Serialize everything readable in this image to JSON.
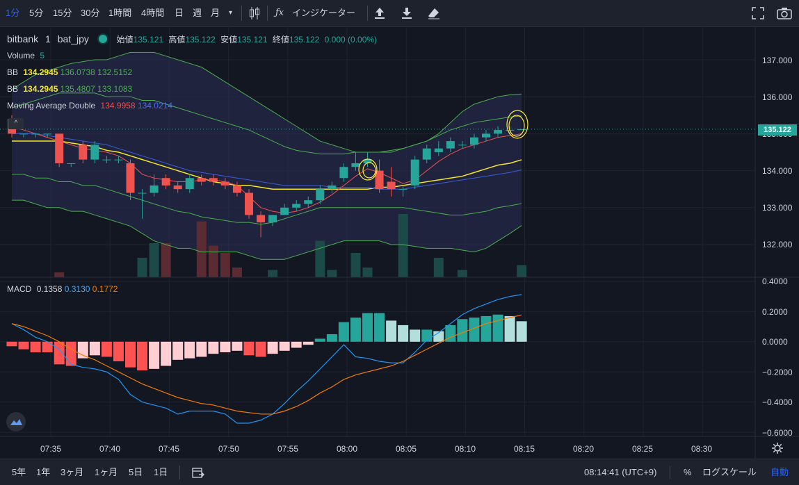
{
  "toolbar": {
    "intervals": [
      "1分",
      "5分",
      "15分",
      "30分",
      "1時間",
      "4時間",
      "日",
      "週",
      "月"
    ],
    "indicators_label": "インジケーター"
  },
  "legend": {
    "symbol": "bitbank",
    "interval": "1",
    "pair": "bat_jpy",
    "open_label": "始値",
    "open": "135.121",
    "high_label": "高値",
    "high": "135.122",
    "low_label": "安値",
    "low": "135.121",
    "close_label": "終値",
    "close": "135.122",
    "change": "0.000 (0.00%)",
    "volume_label": "Volume",
    "volume_value": "5",
    "bb1_label": "BB",
    "bb1_mid": "134.2945",
    "bb1_upper": "136.0738",
    "bb1_lower": "132.5152",
    "bb2_label": "BB",
    "bb2_mid": "134.2945",
    "bb2_upper": "135.4807",
    "bb2_lower": "133.1083",
    "ma_label": "Moving Average Double",
    "ma_fast": "134.9958",
    "ma_slow": "134.0214"
  },
  "macd_legend": {
    "label": "MACD",
    "hist": "0.1358",
    "macd": "0.3130",
    "signal": "0.1772"
  },
  "price_axis": [
    "137.000",
    "136.000",
    "135.000",
    "134.000",
    "133.000",
    "132.000"
  ],
  "current_price": "135.122",
  "macd_axis": [
    "0.4000",
    "0.2000",
    "0.0000",
    "−0.2000",
    "−0.4000",
    "−0.6000"
  ],
  "time_axis": [
    "07:35",
    "07:40",
    "07:45",
    "07:50",
    "07:55",
    "08:00",
    "08:05",
    "08:10",
    "08:15",
    "08:20",
    "08:25",
    "08:30"
  ],
  "bottom": {
    "ranges": [
      "5年",
      "1年",
      "3ヶ月",
      "1ヶ月",
      "5日",
      "1日"
    ],
    "time": "08:14:41 (UTC+9)",
    "percent": "%",
    "log": "ログスケール",
    "auto": "自動"
  },
  "colors": {
    "up": "#26a69a",
    "down": "#ef5350",
    "background": "#131722",
    "accent": "#2962ff"
  },
  "chart_data": [
    {
      "type": "candlestick",
      "title": "bitbank bat_jpy 1",
      "x": [
        "07:31",
        "07:32",
        "07:33",
        "07:34",
        "07:35",
        "07:36",
        "07:37",
        "07:38",
        "07:39",
        "07:40",
        "07:41",
        "07:42",
        "07:43",
        "07:44",
        "07:45",
        "07:46",
        "07:47",
        "07:48",
        "07:49",
        "07:50",
        "07:51",
        "07:52",
        "07:53",
        "07:54",
        "07:55",
        "07:56",
        "07:57",
        "07:58",
        "07:59",
        "08:00",
        "08:01",
        "08:02",
        "08:03",
        "08:04",
        "08:05",
        "08:06",
        "08:07",
        "08:08",
        "08:09",
        "08:10",
        "08:11",
        "08:12",
        "08:13",
        "08:14"
      ],
      "open": [
        135.4,
        135.0,
        135.0,
        135.0,
        135.0,
        134.2,
        134.7,
        134.3,
        134.3,
        134.3,
        134.2,
        133.4,
        133.4,
        133.8,
        133.6,
        133.5,
        133.8,
        133.8,
        133.7,
        133.6,
        133.4,
        132.8,
        132.6,
        132.8,
        133.0,
        133.1,
        133.2,
        133.5,
        133.8,
        134.1,
        134.2,
        134.0,
        133.7,
        133.5,
        133.6,
        134.3,
        134.5,
        134.6,
        134.7,
        134.7,
        134.9,
        135.0,
        135.1,
        135.1
      ],
      "close": [
        135.0,
        135.0,
        135.0,
        135.0,
        134.2,
        134.2,
        134.3,
        134.7,
        134.3,
        134.3,
        133.4,
        133.4,
        133.6,
        133.6,
        133.5,
        133.8,
        133.7,
        133.7,
        133.6,
        133.4,
        132.8,
        132.6,
        132.8,
        133.0,
        133.1,
        133.2,
        133.5,
        133.6,
        134.1,
        134.2,
        134.3,
        133.5,
        133.5,
        133.5,
        134.3,
        134.6,
        134.6,
        134.8,
        134.7,
        134.9,
        135.0,
        135.1,
        135.1,
        135.122
      ],
      "high": [
        135.5,
        135.0,
        135.0,
        135.0,
        135.0,
        134.2,
        134.8,
        134.8,
        134.4,
        134.4,
        134.3,
        133.5,
        133.9,
        133.9,
        133.7,
        133.9,
        133.9,
        133.9,
        133.8,
        133.7,
        133.5,
        132.9,
        132.8,
        133.1,
        133.2,
        133.3,
        133.6,
        133.7,
        134.2,
        134.5,
        134.5,
        134.3,
        134.1,
        133.6,
        134.4,
        134.7,
        134.8,
        134.9,
        134.8,
        135.0,
        135.1,
        135.2,
        135.2,
        135.122
      ],
      "low": [
        134.9,
        134.9,
        134.9,
        134.9,
        134.1,
        134.1,
        134.2,
        134.2,
        134.2,
        134.2,
        133.2,
        132.7,
        133.3,
        133.5,
        133.4,
        133.4,
        133.6,
        133.6,
        133.5,
        133.3,
        132.7,
        132.2,
        132.5,
        132.8,
        132.9,
        133.0,
        133.1,
        133.4,
        133.7,
        134.0,
        134.1,
        133.4,
        133.3,
        133.3,
        133.5,
        134.2,
        134.4,
        134.5,
        134.6,
        134.6,
        134.8,
        134.9,
        135.0,
        135.121
      ],
      "volume": [
        0,
        0,
        0,
        0,
        2,
        0,
        0,
        0,
        0,
        0,
        0,
        8,
        14,
        14,
        0,
        0,
        23,
        13,
        10,
        4,
        0,
        0,
        3,
        0,
        0,
        0,
        15,
        3,
        0,
        10,
        4,
        0,
        0,
        26,
        0,
        0,
        8,
        0,
        3,
        0,
        0,
        0,
        0,
        5
      ],
      "series": [
        {
          "name": "BB upper (2σ)",
          "values": [
            136.2,
            136.4,
            136.6,
            136.7,
            136.8,
            136.9,
            136.95,
            137.0,
            137.0,
            137.1,
            137.2,
            137.2,
            137.2,
            137.1,
            137.0,
            136.9,
            136.8,
            136.6,
            136.4,
            136.2,
            136.0,
            135.8,
            135.6,
            135.4,
            135.2,
            135.0,
            134.8,
            134.7,
            134.6,
            134.5,
            134.5,
            134.5,
            134.5,
            134.6,
            134.7,
            134.8,
            135.0,
            135.3,
            135.6,
            135.8,
            135.9,
            136.0,
            136.05,
            136.0738
          ]
        },
        {
          "name": "BB lower (2σ)",
          "values": [
            133.2,
            133.2,
            133.1,
            133.0,
            133.0,
            132.9,
            132.9,
            132.8,
            132.7,
            132.6,
            132.5,
            132.3,
            132.1,
            132.0,
            131.9,
            131.9,
            131.8,
            131.8,
            131.8,
            131.8,
            131.7,
            131.6,
            131.6,
            131.6,
            131.7,
            131.8,
            131.9,
            132.0,
            132.1,
            132.1,
            132.1,
            132.1,
            132.0,
            132.0,
            131.95,
            131.9,
            131.9,
            131.9,
            131.85,
            131.8,
            131.9,
            132.1,
            132.3,
            132.5152
          ]
        },
        {
          "name": "BB upper (1σ)",
          "values": [
            135.7,
            135.8,
            135.9,
            136.0,
            136.1,
            136.1,
            136.1,
            136.1,
            136.0,
            136.0,
            136.0,
            135.9,
            135.9,
            135.8,
            135.7,
            135.6,
            135.5,
            135.4,
            135.3,
            135.2,
            135.1,
            134.95,
            134.8,
            134.65,
            134.55,
            134.5,
            134.45,
            134.45,
            134.45,
            134.5,
            134.5,
            134.5,
            134.55,
            134.6,
            134.7,
            134.8,
            134.95,
            135.1,
            135.2,
            135.3,
            135.35,
            135.4,
            135.45,
            135.4807
          ]
        },
        {
          "name": "BB lower (1σ)",
          "values": [
            133.9,
            133.9,
            133.8,
            133.8,
            133.7,
            133.7,
            133.6,
            133.6,
            133.5,
            133.4,
            133.3,
            133.2,
            133.1,
            133.0,
            132.9,
            132.85,
            132.75,
            132.7,
            132.65,
            132.6,
            132.6,
            132.55,
            132.6,
            132.7,
            132.8,
            132.9,
            133.0,
            133.0,
            133.0,
            133.0,
            133.0,
            133.0,
            133.0,
            133.0,
            132.95,
            132.9,
            132.85,
            132.8,
            132.8,
            132.85,
            132.9,
            133.0,
            133.05,
            133.1083
          ]
        },
        {
          "name": "BB basis",
          "values": [
            134.8,
            134.8,
            134.8,
            134.8,
            134.8,
            134.75,
            134.7,
            134.65,
            134.55,
            134.5,
            134.4,
            134.3,
            134.2,
            134.1,
            134.0,
            133.9,
            133.8,
            133.7,
            133.65,
            133.6,
            133.6,
            133.55,
            133.5,
            133.5,
            133.5,
            133.5,
            133.5,
            133.5,
            133.5,
            133.5,
            133.5,
            133.55,
            133.55,
            133.6,
            133.65,
            133.7,
            133.75,
            133.8,
            133.85,
            133.95,
            134.05,
            134.15,
            134.2,
            134.2945
          ]
        },
        {
          "name": "MA fast",
          "values": [
            135.2,
            135.1,
            135.0,
            134.9,
            134.8,
            134.7,
            134.6,
            134.55,
            134.5,
            134.4,
            134.2,
            133.9,
            133.8,
            133.75,
            133.7,
            133.7,
            133.75,
            133.75,
            133.7,
            133.6,
            133.3,
            133.0,
            132.9,
            132.85,
            132.9,
            133.0,
            133.15,
            133.35,
            133.6,
            133.85,
            134.05,
            133.95,
            133.8,
            133.65,
            133.75,
            134.0,
            134.25,
            134.45,
            134.6,
            134.7,
            134.8,
            134.9,
            134.95,
            134.9958
          ]
        },
        {
          "name": "MA slow",
          "values": [
            135.0,
            135.0,
            135.0,
            134.95,
            134.9,
            134.85,
            134.8,
            134.75,
            134.7,
            134.6,
            134.5,
            134.4,
            134.3,
            134.2,
            134.1,
            134.0,
            133.95,
            133.9,
            133.85,
            133.8,
            133.75,
            133.7,
            133.65,
            133.6,
            133.6,
            133.6,
            133.6,
            133.55,
            133.55,
            133.55,
            133.55,
            133.5,
            133.5,
            133.5,
            133.55,
            133.6,
            133.65,
            133.7,
            133.75,
            133.8,
            133.85,
            133.9,
            133.95,
            134.0214
          ]
        }
      ],
      "ylim": [
        131.0,
        137.5
      ]
    },
    {
      "type": "bar",
      "title": "MACD",
      "x": [
        "07:31",
        "07:32",
        "07:33",
        "07:34",
        "07:35",
        "07:36",
        "07:37",
        "07:38",
        "07:39",
        "07:40",
        "07:41",
        "07:42",
        "07:43",
        "07:44",
        "07:45",
        "07:46",
        "07:47",
        "07:48",
        "07:49",
        "07:50",
        "07:51",
        "07:52",
        "07:53",
        "07:54",
        "07:55",
        "07:56",
        "07:57",
        "07:58",
        "07:59",
        "08:00",
        "08:01",
        "08:02",
        "08:03",
        "08:04",
        "08:05",
        "08:06",
        "08:07",
        "08:08",
        "08:09",
        "08:10",
        "08:11",
        "08:12",
        "08:13",
        "08:14"
      ],
      "histogram": [
        -0.03,
        -0.05,
        -0.07,
        -0.07,
        -0.15,
        -0.16,
        -0.11,
        -0.09,
        -0.1,
        -0.13,
        -0.17,
        -0.19,
        -0.18,
        -0.16,
        -0.12,
        -0.11,
        -0.1,
        -0.08,
        -0.07,
        -0.06,
        -0.09,
        -0.1,
        -0.08,
        -0.06,
        -0.04,
        -0.02,
        0.02,
        0.05,
        0.13,
        0.16,
        0.19,
        0.19,
        0.14,
        0.11,
        0.08,
        0.08,
        0.07,
        0.11,
        0.15,
        0.16,
        0.17,
        0.18,
        0.17,
        0.1358
      ],
      "series": [
        {
          "name": "MACD",
          "values": [
            0.12,
            0.08,
            0.03,
            0.0,
            -0.05,
            -0.15,
            -0.17,
            -0.18,
            -0.2,
            -0.25,
            -0.35,
            -0.4,
            -0.42,
            -0.44,
            -0.48,
            -0.46,
            -0.46,
            -0.46,
            -0.48,
            -0.54,
            -0.54,
            -0.52,
            -0.48,
            -0.41,
            -0.33,
            -0.26,
            -0.18,
            -0.1,
            -0.02,
            -0.1,
            -0.11,
            -0.13,
            -0.14,
            -0.14,
            -0.07,
            0.01,
            0.06,
            0.12,
            0.18,
            0.22,
            0.25,
            0.28,
            0.3,
            0.313
          ]
        },
        {
          "name": "Signal",
          "values": [
            0.12,
            0.1,
            0.07,
            0.04,
            0.0,
            -0.05,
            -0.09,
            -0.12,
            -0.16,
            -0.2,
            -0.24,
            -0.28,
            -0.31,
            -0.34,
            -0.37,
            -0.39,
            -0.41,
            -0.42,
            -0.44,
            -0.46,
            -0.47,
            -0.48,
            -0.48,
            -0.46,
            -0.43,
            -0.39,
            -0.34,
            -0.3,
            -0.25,
            -0.22,
            -0.2,
            -0.18,
            -0.16,
            -0.13,
            -0.09,
            -0.05,
            -0.01,
            0.03,
            0.06,
            0.09,
            0.12,
            0.14,
            0.16,
            0.1772
          ]
        }
      ],
      "ylim": [
        -0.62,
        0.4
      ]
    }
  ]
}
